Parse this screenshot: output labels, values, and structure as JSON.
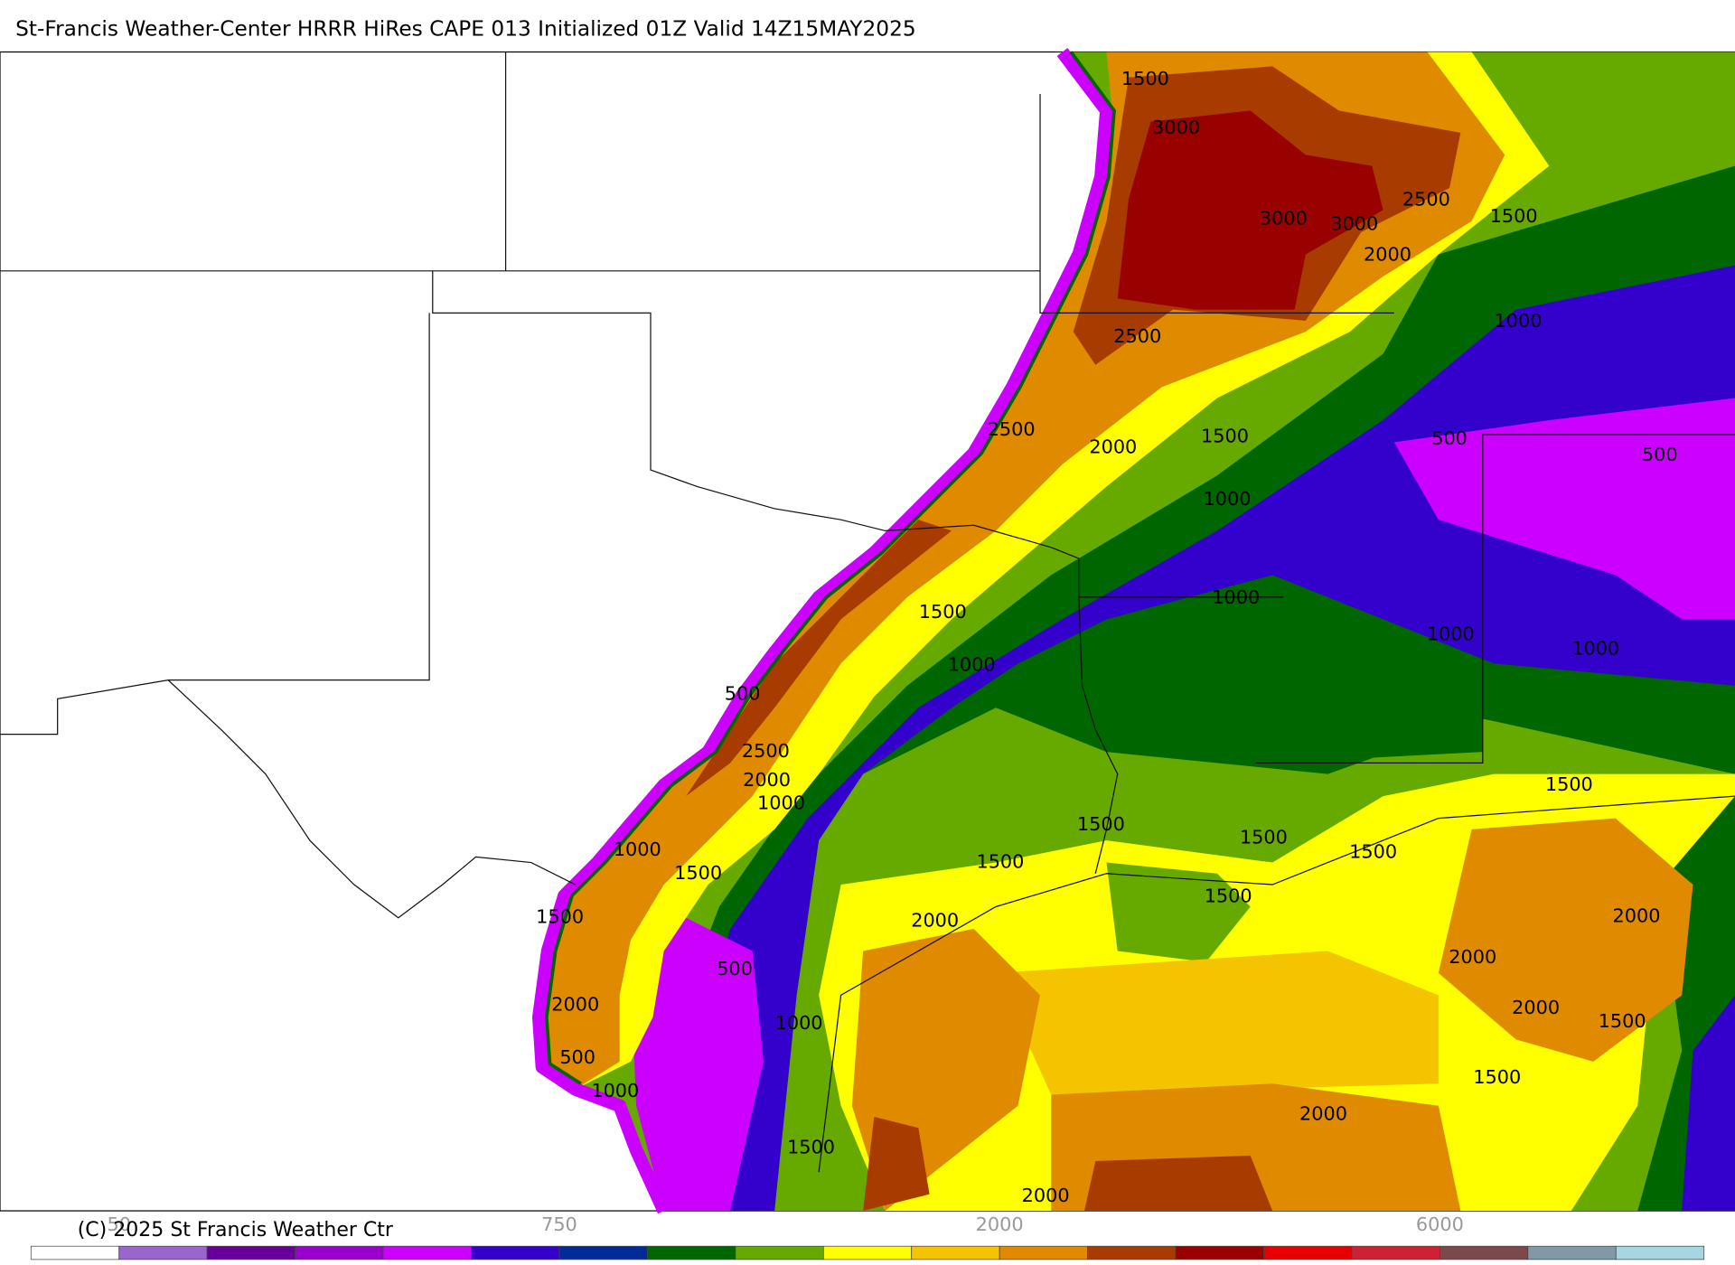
{
  "header": {
    "title": "St-Francis Weather-Center HRRR HiRes CAPE  013 Initialized  01Z Valid 14Z15MAY2025"
  },
  "map": {
    "contour_labels": [
      "1500",
      "3000",
      "3000",
      "3000",
      "2500",
      "1500",
      "2000",
      "1000",
      "2500",
      "2500",
      "2000",
      "1500",
      "500",
      "500",
      "1000",
      "1000",
      "1500",
      "1000",
      "1000",
      "1000",
      "500",
      "2500",
      "2000",
      "1000",
      "1500",
      "1500",
      "1500",
      "1500",
      "1000",
      "1500",
      "1500",
      "1500",
      "1500",
      "2000",
      "2000",
      "2000",
      "500",
      "2000",
      "2000",
      "1500",
      "1000",
      "500",
      "1000",
      "1500",
      "2000",
      "1500",
      "2000"
    ]
  },
  "colorbar": {
    "colors": [
      "#ffffff",
      "#9966cc",
      "#660099",
      "#9900cc",
      "#cc00ff",
      "#3300cc",
      "#002b99",
      "#006600",
      "#66aa00",
      "#ffff00",
      "#f5c400",
      "#e08a00",
      "#a83c00",
      "#990000",
      "#e60000",
      "#cc2233",
      "#7a4a4a",
      "#7f99a6",
      "#a6d6e0"
    ],
    "labels": [
      "50",
      "750",
      "2000",
      "6000"
    ]
  },
  "footer": {
    "copyright": "(C) 2025 St Francis Weather Ctr"
  }
}
